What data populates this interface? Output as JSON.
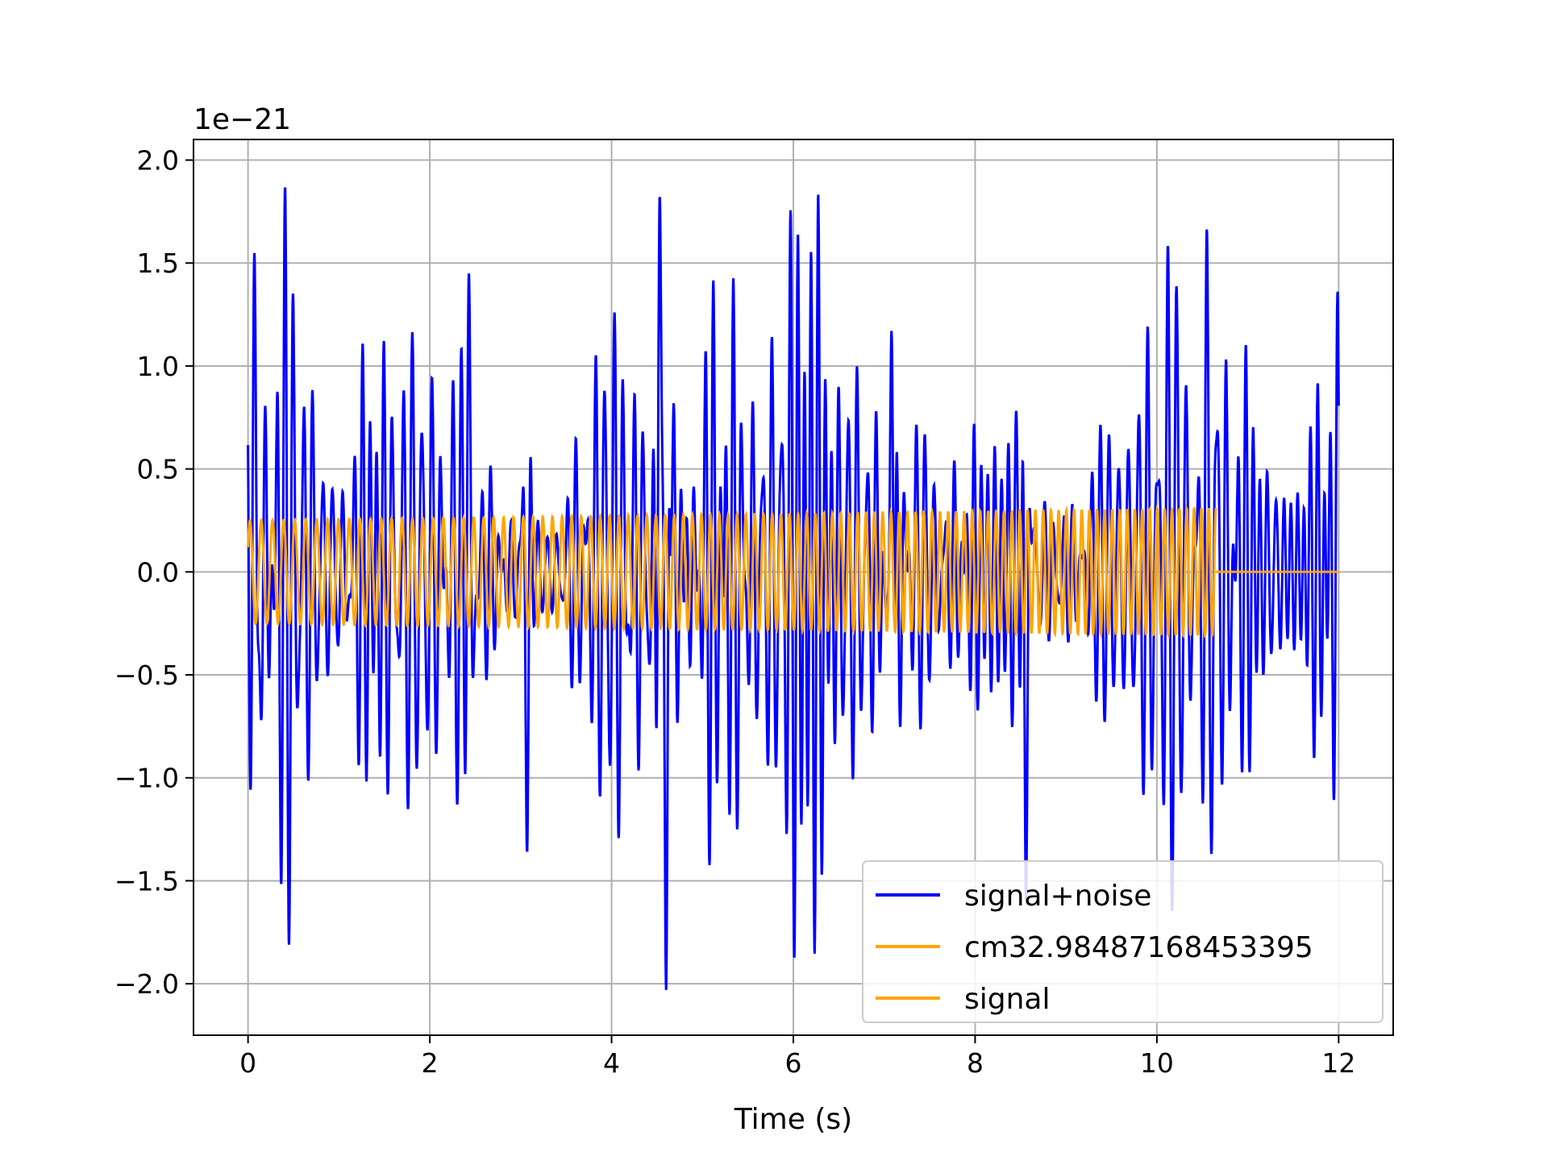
{
  "chart_data": {
    "type": "line",
    "xlabel": "Time (s)",
    "ylabel": "",
    "offset_text": "1e−21",
    "y_scale_exponent": -21,
    "xlim": [
      -0.6,
      12.6
    ],
    "ylim": [
      -2.25,
      2.1
    ],
    "xticks": [
      0,
      2,
      4,
      6,
      8,
      10,
      12
    ],
    "xtick_labels": [
      "0",
      "2",
      "4",
      "6",
      "8",
      "10",
      "12"
    ],
    "yticks": [
      -2.0,
      -1.5,
      -1.0,
      -0.5,
      0.0,
      0.5,
      1.0,
      1.5,
      2.0
    ],
    "ytick_labels": [
      "−2.0",
      "−1.5",
      "−1.0",
      "−0.5",
      "0.0",
      "0.5",
      "1.0",
      "1.5",
      "2.0"
    ],
    "grid": true,
    "legend_position": "lower-right",
    "series": [
      {
        "name": "signal+noise",
        "color": "#0000ff",
        "t_start": 0,
        "t_end": 12,
        "approx_amplitude_range": [
          -2.03,
          1.91
        ],
        "notable_peaks": [
          {
            "x": 0.07,
            "y": 1.55
          },
          {
            "x": 2.43,
            "y": 1.45
          },
          {
            "x": 3.07,
            "y": -1.36
          },
          {
            "x": 4.53,
            "y": 1.91
          },
          {
            "x": 4.6,
            "y": -2.03
          },
          {
            "x": 7.08,
            "y": 1.17
          },
          {
            "x": 8.56,
            "y": -1.6
          },
          {
            "x": 10.55,
            "y": 1.76
          },
          {
            "x": 10.6,
            "y": -1.37
          }
        ]
      },
      {
        "name": "cm32.98487168453395",
        "color": "#ffa500",
        "t_start": 0,
        "t_end": 10.65,
        "amplitude_start": 0.25,
        "amplitude_end": 0.31,
        "freq_start": 8.0,
        "freq_end": 12.5
      },
      {
        "name": "signal",
        "color": "#ffa500",
        "t_start": 0,
        "t_end": 12,
        "chirp_end": 10.65,
        "amplitude_start": 0.25,
        "amplitude_end": 0.31
      }
    ]
  }
}
